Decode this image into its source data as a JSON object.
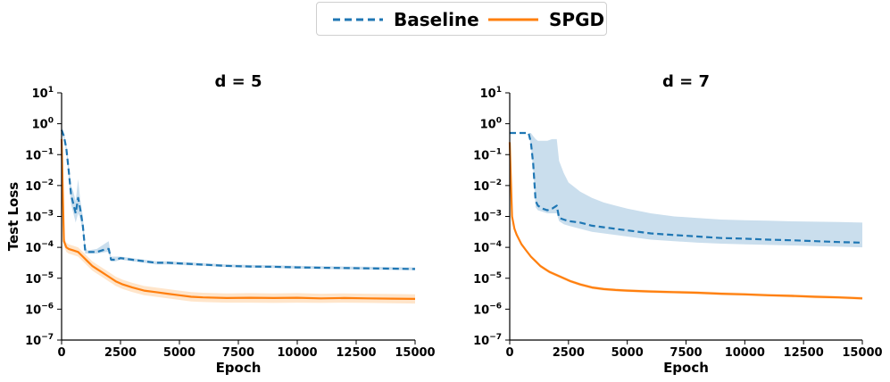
{
  "legend": {
    "baseline": "Baseline",
    "spgd": "SPGD"
  },
  "colors": {
    "baseline": "#1f77b4",
    "spgd": "#ff7f0e",
    "baseline_band": "#9ec3df",
    "spgd_band": "#ffcf9f"
  },
  "chart_data": [
    {
      "type": "line",
      "title": "d = 5",
      "xlabel": "Epoch",
      "ylabel": "Test Loss",
      "xlim": [
        0,
        15000
      ],
      "ylim_log10": [
        -7,
        1
      ],
      "yscale": "log",
      "xticks": [
        0,
        2500,
        5000,
        7500,
        10000,
        12500,
        15000
      ],
      "yticks_exp": [
        1,
        0,
        -1,
        -2,
        -3,
        -4,
        -5,
        -6,
        -7
      ],
      "series": [
        {
          "name": "Baseline",
          "style": "dashed",
          "x": [
            0,
            100,
            200,
            300,
            400,
            500,
            600,
            700,
            800,
            900,
            1000,
            1100,
            1500,
            1900,
            2000,
            2100,
            2300,
            2500,
            3000,
            3500,
            4000,
            4500,
            5000,
            6000,
            7000,
            8000,
            9000,
            10000,
            11000,
            12000,
            13000,
            14000,
            15000
          ],
          "log10_y": [
            -0.2,
            -0.4,
            -0.8,
            -1.5,
            -2.3,
            -2.6,
            -2.9,
            -2.4,
            -2.8,
            -3.3,
            -4.1,
            -4.15,
            -4.15,
            -4.05,
            -4.05,
            -4.4,
            -4.4,
            -4.35,
            -4.4,
            -4.45,
            -4.5,
            -4.5,
            -4.52,
            -4.56,
            -4.6,
            -4.62,
            -4.63,
            -4.65,
            -4.66,
            -4.67,
            -4.68,
            -4.69,
            -4.7
          ],
          "band_log10_low": [
            -0.3,
            -0.5,
            -0.9,
            -1.7,
            -2.6,
            -2.9,
            -3.2,
            -2.9,
            -3.1,
            -3.5,
            -4.2,
            -4.2,
            -4.2,
            -4.15,
            -4.15,
            -4.45,
            -4.45,
            -4.4,
            -4.45,
            -4.5,
            -4.55,
            -4.55,
            -4.57,
            -4.6,
            -4.64,
            -4.66,
            -4.67,
            -4.69,
            -4.7,
            -4.71,
            -4.72,
            -4.73,
            -4.74
          ],
          "band_log10_high": [
            -0.1,
            -0.3,
            -0.7,
            -1.3,
            -2.0,
            -2.2,
            -2.5,
            -1.8,
            -2.5,
            -3.0,
            -4.0,
            -4.1,
            -4.05,
            -3.85,
            -3.8,
            -4.3,
            -4.3,
            -4.3,
            -4.35,
            -4.4,
            -4.45,
            -4.45,
            -4.47,
            -4.51,
            -4.55,
            -4.57,
            -4.58,
            -4.6,
            -4.61,
            -4.62,
            -4.63,
            -4.64,
            -4.65
          ]
        },
        {
          "name": "SPGD",
          "style": "solid",
          "x": [
            0,
            100,
            200,
            300,
            500,
            700,
            900,
            1100,
            1300,
            1500,
            1700,
            2000,
            2300,
            2600,
            3000,
            3500,
            4000,
            4500,
            5000,
            5500,
            6000,
            7000,
            8000,
            9000,
            10000,
            11000,
            12000,
            13000,
            14000,
            15000
          ],
          "log10_y": [
            -0.5,
            -3.8,
            -4.0,
            -4.05,
            -4.1,
            -4.15,
            -4.3,
            -4.45,
            -4.6,
            -4.7,
            -4.8,
            -4.95,
            -5.1,
            -5.2,
            -5.3,
            -5.4,
            -5.45,
            -5.5,
            -5.55,
            -5.6,
            -5.62,
            -5.64,
            -5.63,
            -5.64,
            -5.63,
            -5.65,
            -5.64,
            -5.65,
            -5.66,
            -5.67
          ],
          "band_log10_low": [
            -0.6,
            -3.95,
            -4.15,
            -4.2,
            -4.25,
            -4.3,
            -4.45,
            -4.6,
            -4.75,
            -4.85,
            -4.95,
            -5.1,
            -5.25,
            -5.35,
            -5.45,
            -5.55,
            -5.6,
            -5.65,
            -5.7,
            -5.75,
            -5.77,
            -5.79,
            -5.79,
            -5.8,
            -5.79,
            -5.8,
            -5.79,
            -5.8,
            -5.81,
            -5.82
          ],
          "band_log10_high": [
            -0.4,
            -3.65,
            -3.85,
            -3.9,
            -3.95,
            -4.0,
            -4.15,
            -4.3,
            -4.45,
            -4.55,
            -4.65,
            -4.8,
            -4.95,
            -5.05,
            -5.15,
            -5.25,
            -5.3,
            -5.35,
            -5.4,
            -5.45,
            -5.47,
            -5.49,
            -5.48,
            -5.49,
            -5.48,
            -5.5,
            -5.49,
            -5.5,
            -5.51,
            -5.52
          ]
        }
      ]
    },
    {
      "type": "line",
      "title": "d = 7",
      "xlabel": "Epoch",
      "ylabel": "",
      "xlim": [
        0,
        15000
      ],
      "ylim_log10": [
        -7,
        1
      ],
      "yscale": "log",
      "xticks": [
        0,
        2500,
        5000,
        7500,
        10000,
        12500,
        15000
      ],
      "yticks_exp": [
        1,
        0,
        -1,
        -2,
        -3,
        -4,
        -5,
        -6,
        -7
      ],
      "series": [
        {
          "name": "Baseline",
          "style": "dashed",
          "x": [
            0,
            200,
            400,
            600,
            800,
            900,
            1000,
            1100,
            1200,
            1400,
            1600,
            1800,
            2000,
            2100,
            2300,
            2500,
            3000,
            3500,
            4000,
            4500,
            5000,
            6000,
            7000,
            8000,
            9000,
            10000,
            11000,
            12000,
            13000,
            14000,
            15000
          ],
          "log10_y": [
            -0.3,
            -0.3,
            -0.3,
            -0.3,
            -0.3,
            -0.6,
            -1.3,
            -2.5,
            -2.65,
            -2.75,
            -2.8,
            -2.75,
            -2.65,
            -3.05,
            -3.1,
            -3.15,
            -3.2,
            -3.3,
            -3.35,
            -3.4,
            -3.45,
            -3.55,
            -3.6,
            -3.65,
            -3.7,
            -3.72,
            -3.75,
            -3.77,
            -3.8,
            -3.83,
            -3.85
          ],
          "band_log10_low": [
            -0.3,
            -0.3,
            -0.3,
            -0.3,
            -0.3,
            -0.7,
            -1.5,
            -2.7,
            -2.8,
            -2.85,
            -2.9,
            -2.9,
            -2.9,
            -3.15,
            -3.25,
            -3.3,
            -3.4,
            -3.5,
            -3.55,
            -3.6,
            -3.65,
            -3.75,
            -3.8,
            -3.85,
            -3.88,
            -3.9,
            -3.92,
            -3.94,
            -3.96,
            -3.98,
            -4.0
          ],
          "band_log10_high": [
            -0.3,
            -0.3,
            -0.3,
            -0.3,
            -0.3,
            -0.3,
            -0.4,
            -0.5,
            -0.55,
            -0.55,
            -0.55,
            -0.5,
            -0.5,
            -1.2,
            -1.6,
            -1.9,
            -2.2,
            -2.4,
            -2.55,
            -2.65,
            -2.75,
            -2.9,
            -3.0,
            -3.05,
            -3.1,
            -3.12,
            -3.14,
            -3.16,
            -3.17,
            -3.18,
            -3.2
          ]
        },
        {
          "name": "SPGD",
          "style": "solid",
          "x": [
            0,
            100,
            200,
            300,
            500,
            700,
            900,
            1100,
            1300,
            1500,
            1700,
            2000,
            2300,
            2600,
            3000,
            3500,
            4000,
            4500,
            5000,
            6000,
            7000,
            8000,
            9000,
            10000,
            11000,
            12000,
            13000,
            14000,
            15000
          ],
          "log10_y": [
            -0.6,
            -3.0,
            -3.4,
            -3.6,
            -3.9,
            -4.1,
            -4.3,
            -4.45,
            -4.6,
            -4.7,
            -4.8,
            -4.9,
            -5.0,
            -5.1,
            -5.2,
            -5.3,
            -5.35,
            -5.38,
            -5.4,
            -5.43,
            -5.45,
            -5.47,
            -5.5,
            -5.52,
            -5.55,
            -5.57,
            -5.6,
            -5.62,
            -5.65
          ],
          "band_log10_low": [
            -0.65,
            -3.05,
            -3.45,
            -3.65,
            -3.95,
            -4.15,
            -4.35,
            -4.5,
            -4.65,
            -4.75,
            -4.85,
            -4.95,
            -5.05,
            -5.15,
            -5.25,
            -5.35,
            -5.4,
            -5.43,
            -5.45,
            -5.48,
            -5.5,
            -5.52,
            -5.55,
            -5.57,
            -5.6,
            -5.62,
            -5.65,
            -5.67,
            -5.7
          ],
          "band_log10_high": [
            -0.55,
            -2.95,
            -3.35,
            -3.55,
            -3.85,
            -4.05,
            -4.25,
            -4.4,
            -4.55,
            -4.65,
            -4.75,
            -4.85,
            -4.95,
            -5.05,
            -5.15,
            -5.25,
            -5.3,
            -5.33,
            -5.35,
            -5.38,
            -5.4,
            -5.42,
            -5.45,
            -5.47,
            -5.5,
            -5.52,
            -5.55,
            -5.57,
            -5.6
          ]
        }
      ]
    }
  ]
}
